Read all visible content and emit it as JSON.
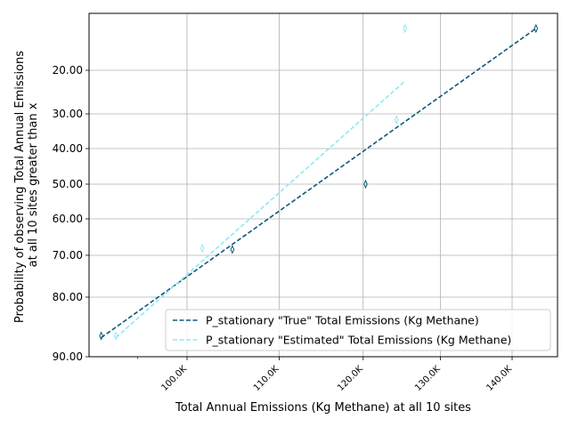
{
  "chart_data": {
    "type": "line",
    "title": "",
    "xlabel": "Total Annual Emissions (Kg Methane) at all 10 sites",
    "ylabel_lines": [
      "Probability of observing Total Annual Emissions",
      "at all 10 sites greater than x"
    ],
    "x_scale": "log",
    "y_scale": "nonlinear (probability)",
    "grid": true,
    "legend_position": "lower-right",
    "x_ticks": [
      {
        "value": 100000,
        "label": "100.0K"
      },
      {
        "value": 110000,
        "label": "110.0K"
      },
      {
        "value": 120000,
        "label": "120.0K"
      },
      {
        "value": 130000,
        "label": "130.0K"
      },
      {
        "value": 140000,
        "label": "140.0K"
      }
    ],
    "y_ticks": [
      {
        "value": 20,
        "label": "20.00"
      },
      {
        "value": 30,
        "label": "30.00"
      },
      {
        "value": 40,
        "label": "40.00"
      },
      {
        "value": 50,
        "label": "50.00"
      },
      {
        "value": 60,
        "label": "60.00"
      },
      {
        "value": 70,
        "label": "70.00"
      },
      {
        "value": 80,
        "label": "80.00"
      },
      {
        "value": 90,
        "label": "90.00"
      }
    ],
    "series": [
      {
        "name": "P_stationary \"True\" Total Emissions (Kg Methane)",
        "color": "#0b5877",
        "line_style": "dashed",
        "marker": "thin-diamond",
        "points": [
          {
            "x": 91500,
            "y": 86.5
          },
          {
            "x": 104800,
            "y": 68.4
          },
          {
            "x": 120300,
            "y": 50.0
          },
          {
            "x": 143500,
            "y": 10.5
          }
        ],
        "fit_line": [
          {
            "x": 91500,
            "y": 86.8
          },
          {
            "x": 143500,
            "y": 10.5
          }
        ]
      },
      {
        "name": "P_stationary \"Estimated\" Total Emissions (Kg Methane)",
        "color": "#8de8f7",
        "line_style": "dashed",
        "marker": "thin-diamond",
        "points": [
          {
            "x": 92900,
            "y": 86.5
          },
          {
            "x": 101600,
            "y": 68.1
          },
          {
            "x": 124200,
            "y": 31.7
          },
          {
            "x": 125300,
            "y": 10.5
          }
        ],
        "fit_line": [
          {
            "x": 92900,
            "y": 86.8
          },
          {
            "x": 125300,
            "y": 22.5
          }
        ]
      }
    ]
  }
}
